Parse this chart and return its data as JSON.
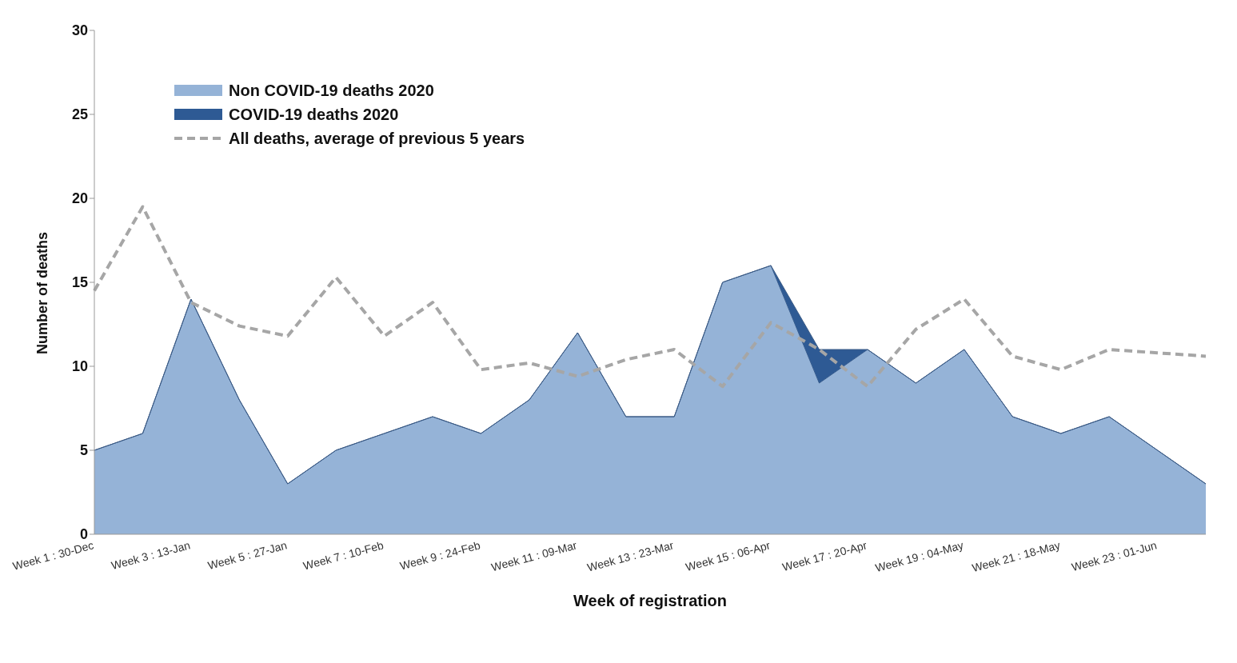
{
  "chart_data": {
    "type": "area",
    "xlabel": "Week of registration",
    "ylabel": "Number of deaths",
    "categories": [
      "Week 1 : 30-Dec",
      null,
      "Week 3 : 13-Jan",
      null,
      "Week 5 : 27-Jan",
      null,
      "Week 7 : 10-Feb",
      null,
      "Week 9 : 24-Feb",
      null,
      "Week 11 : 09-Mar",
      null,
      "Week 13 : 23-Mar",
      null,
      "Week 15 : 06-Apr",
      null,
      "Week 17 : 20-Apr",
      null,
      "Week 19 : 04-May",
      null,
      "Week 21 : 18-May",
      null,
      "Week 23 : 01-Jun",
      null
    ],
    "stacked": true,
    "series": [
      {
        "name": "Non COVID-19 deaths 2020",
        "color": "#95b3d7",
        "values": [
          5,
          6,
          14,
          8,
          3,
          5,
          6,
          7,
          6,
          8,
          12,
          7,
          7,
          15,
          16,
          9,
          11,
          9,
          11,
          7,
          6,
          7,
          5,
          3
        ]
      },
      {
        "name": "COVID-19 deaths 2020",
        "color": "#2e5a94",
        "values": [
          0,
          0,
          0,
          0,
          0,
          0,
          0,
          0,
          0,
          0,
          0,
          0,
          0,
          0,
          0,
          2,
          0,
          0,
          0,
          0,
          0,
          0,
          0,
          0
        ]
      },
      {
        "name": "All deaths, average of previous 5 years",
        "type": "line",
        "color": "#a6a6a6",
        "line_style": "dashed",
        "marker": "none",
        "values": [
          14.5,
          19.5,
          13.8,
          12.4,
          11.8,
          15.3,
          11.8,
          13.8,
          9.8,
          10.2,
          9.4,
          10.4,
          11.0,
          8.8,
          12.6,
          11.0,
          8.8,
          12.2,
          14.0,
          10.6,
          9.8,
          11.0,
          10.8,
          10.6
        ]
      }
    ],
    "ylim": [
      0,
      30
    ],
    "yticks": [
      0,
      5,
      10,
      15,
      20,
      25,
      30
    ],
    "grid": false,
    "legend": "top left"
  }
}
